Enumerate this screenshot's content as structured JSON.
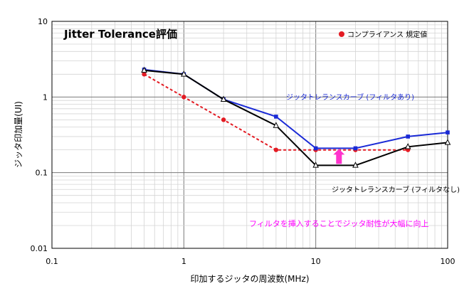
{
  "chart_data": {
    "type": "line",
    "title": "Jitter Tolerance評価",
    "xlabel": "印加するジッタの周波数(MHz)",
    "ylabel": "ジッタ印加量(UI)",
    "xscale": "log",
    "yscale": "log",
    "xlim": [
      0.1,
      100
    ],
    "ylim": [
      0.01,
      10
    ],
    "xticks": [
      "0.1",
      "1",
      "10",
      "100"
    ],
    "yticks": [
      "0.01",
      "0.1",
      "1",
      "10"
    ],
    "grid": true,
    "legend_placement": "top-right",
    "series": [
      {
        "name": "コンプライアンス 規定値",
        "color": "#e31b23",
        "style": "dotted",
        "marker": "circle",
        "x": [
          0.5,
          1,
          2,
          5,
          10,
          20,
          50
        ],
        "y": [
          2.0,
          1.0,
          0.5,
          0.2,
          0.2,
          0.2,
          0.2
        ]
      },
      {
        "name": "ジッタトレランスカーブ (フィルタあり)",
        "color": "#1a2ad6",
        "style": "solid",
        "marker": "square",
        "x": [
          0.5,
          1,
          2,
          5,
          10,
          20,
          50,
          100
        ],
        "y": [
          2.3,
          2.0,
          0.93,
          0.55,
          0.21,
          0.21,
          0.3,
          0.34
        ]
      },
      {
        "name": "ジッタトレランスカーブ (フィルタなし)",
        "color": "#000000",
        "style": "solid",
        "marker": "triangle",
        "x": [
          0.5,
          1,
          2,
          5,
          10,
          20,
          50,
          100
        ],
        "y": [
          2.25,
          2.0,
          0.93,
          0.42,
          0.125,
          0.125,
          0.22,
          0.25
        ]
      }
    ],
    "annotations": [
      {
        "text": "フィルタを挿入することでジッタ耐性が大幅に向上",
        "color": "#ff00ff"
      }
    ],
    "arrow_color": "#ff33cc"
  }
}
